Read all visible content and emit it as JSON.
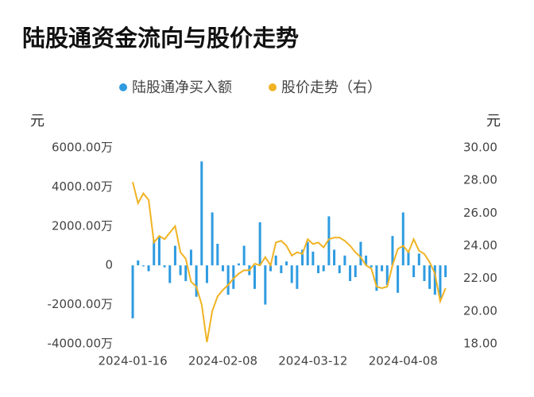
{
  "chart_data": {
    "type": "bar",
    "title": "陆股通资金流向与股价走势",
    "y_label": "元",
    "y2_label": "元",
    "categories": [
      "2024-01-16",
      null,
      null,
      null,
      null,
      null,
      null,
      null,
      null,
      null,
      null,
      null,
      null,
      null,
      null,
      null,
      null,
      "2024-02-08",
      null,
      null,
      null,
      null,
      null,
      null,
      null,
      null,
      null,
      null,
      null,
      null,
      null,
      null,
      null,
      null,
      "2024-03-12",
      null,
      null,
      null,
      null,
      null,
      null,
      null,
      null,
      null,
      null,
      null,
      null,
      null,
      null,
      null,
      null,
      "2024-04-08",
      null,
      null,
      null,
      null,
      null,
      null,
      null,
      null
    ],
    "series": [
      {
        "name": "陆股通净买入额",
        "color": "#2e9be0",
        "values": [
          -2700,
          250,
          -50,
          -300,
          1300,
          1500,
          -100,
          -900,
          1000,
          -500,
          -800,
          800,
          -1600,
          5300,
          -900,
          2700,
          1100,
          -300,
          -1500,
          -1200,
          100,
          1000,
          -500,
          -1200,
          2200,
          -2000,
          -300,
          500,
          -400,
          200,
          -900,
          -1200,
          800,
          1200,
          700,
          -400,
          -300,
          2500,
          800,
          -400,
          500,
          -800,
          -600,
          1200,
          500,
          -100,
          -1300,
          -300,
          -1000,
          1500,
          -1400,
          2700,
          700,
          -600,
          600,
          -800,
          -1200,
          -1500,
          -1700,
          -600
        ]
      },
      {
        "name": "股价走势（右）",
        "type": "line",
        "axis": "y2",
        "color": "#f0b323",
        "values": [
          27.9,
          26.6,
          27.2,
          26.8,
          24.2,
          24.6,
          24.4,
          24.8,
          25.2,
          23.6,
          23.2,
          21.8,
          21.5,
          20.4,
          18.1,
          20.0,
          20.9,
          21.3,
          21.6,
          22.0,
          22.3,
          22.5,
          22.5,
          22.9,
          22.8,
          23.3,
          22.8,
          24.2,
          24.3,
          24.0,
          23.4,
          23.6,
          23.5,
          24.4,
          24.1,
          24.2,
          23.9,
          24.4,
          24.5,
          24.5,
          24.3,
          24.0,
          23.6,
          23.3,
          22.8,
          22.6,
          21.5,
          21.4,
          21.5,
          22.8,
          23.8,
          24.0,
          23.6,
          24.4,
          23.7,
          23.5,
          23.0,
          22.3,
          20.6,
          21.4
        ]
      }
    ],
    "ylim": [
      -4000,
      6000
    ],
    "yticks": [
      {
        "value": -4000,
        "label": "-4000.00万"
      },
      {
        "value": -2000,
        "label": "-2000.00万"
      },
      0,
      {
        "value": 2000,
        "label": "2000.00万"
      },
      {
        "value": 4000,
        "label": "4000.00万"
      },
      {
        "value": 6000,
        "label": "6000.00万"
      }
    ],
    "y2lim": [
      18,
      30
    ],
    "y2ticks": [
      {
        "value": 18,
        "label": "18.00"
      },
      {
        "value": 20,
        "label": "20.00"
      },
      {
        "value": 22,
        "label": "22.00"
      },
      {
        "value": 24,
        "label": "24.00"
      },
      {
        "value": 26,
        "label": "26.00"
      },
      {
        "value": 28,
        "label": "28.00"
      },
      {
        "value": 30,
        "label": "30.00"
      }
    ]
  }
}
